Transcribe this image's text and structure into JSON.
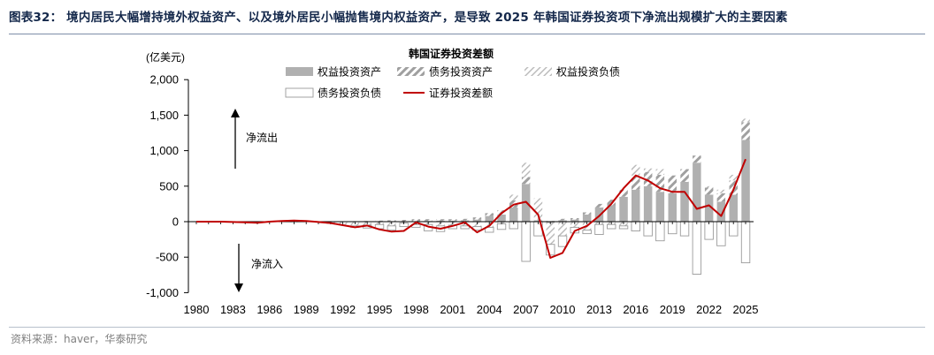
{
  "header": {
    "title": "图表32： 境内居民大幅增持境外权益资产、以及境外居民小幅抛售境内权益资产，是导致 2025 年韩国证券投资项下净流出规模扩大的主要因素"
  },
  "source": "资料来源：haver，华泰研究",
  "chart_data": {
    "type": "bar",
    "title": "韩国证券投资差额",
    "unit_label": "(亿美元)",
    "ylim": [
      -1000,
      2000
    ],
    "yticks": [
      -1000,
      -500,
      0,
      500,
      1000,
      1500,
      2000
    ],
    "ytick_labels": [
      "-1,000",
      "-500",
      "0",
      "500",
      "1,000",
      "1,500",
      "2,000"
    ],
    "xtick_labels": [
      "1980",
      "1983",
      "1986",
      "1989",
      "1992",
      "1995",
      "1998",
      "2001",
      "2004",
      "2007",
      "2010",
      "2013",
      "2016",
      "2019",
      "2022",
      "2025"
    ],
    "years": [
      1980,
      1981,
      1982,
      1983,
      1984,
      1985,
      1986,
      1987,
      1988,
      1989,
      1990,
      1991,
      1992,
      1993,
      1994,
      1995,
      1996,
      1997,
      1998,
      1999,
      2000,
      2001,
      2002,
      2003,
      2004,
      2005,
      2006,
      2007,
      2008,
      2009,
      2010,
      2011,
      2012,
      2013,
      2014,
      2015,
      2016,
      2017,
      2018,
      2019,
      2020,
      2021,
      2022,
      2023,
      2024,
      2025
    ],
    "legend_position": "top-center",
    "grid": false,
    "annotations": {
      "outflow": "净流出",
      "inflow": "净流入"
    },
    "series": [
      {
        "name": "权益投资资产",
        "type": "bar",
        "style": "solid",
        "color": "#b0b0b0",
        "values": [
          0,
          0,
          0,
          0,
          0,
          0,
          0,
          0,
          0,
          0,
          0,
          0,
          0,
          0,
          0,
          0,
          0,
          5,
          5,
          10,
          15,
          15,
          20,
          30,
          80,
          100,
          200,
          530,
          20,
          -20,
          20,
          30,
          100,
          200,
          230,
          350,
          450,
          500,
          420,
          400,
          560,
          830,
          380,
          280,
          380,
          1150
        ]
      },
      {
        "name": "债务投资资产",
        "type": "bar",
        "style": "hatch",
        "color": "#a0a0a0",
        "values": [
          0,
          0,
          0,
          0,
          0,
          0,
          0,
          0,
          0,
          0,
          0,
          0,
          0,
          5,
          10,
          15,
          20,
          20,
          30,
          25,
          20,
          20,
          20,
          30,
          40,
          60,
          100,
          100,
          10,
          10,
          20,
          20,
          30,
          50,
          80,
          100,
          200,
          200,
          240,
          250,
          180,
          100,
          100,
          120,
          200,
          250
        ]
      },
      {
        "name": "权益投资负债",
        "type": "bar",
        "style": "light-hatch",
        "color": "#c0c0c0",
        "values": [
          0,
          0,
          0,
          0,
          0,
          0,
          0,
          0,
          -5,
          -5,
          -10,
          -30,
          -40,
          -60,
          -50,
          -40,
          -60,
          -20,
          -40,
          -40,
          -60,
          -50,
          -60,
          -70,
          -80,
          -30,
          80,
          200,
          300,
          -300,
          -200,
          -80,
          -120,
          -40,
          -40,
          -60,
          150,
          50,
          80,
          0,
          0,
          0,
          20,
          50,
          80,
          50
        ]
      },
      {
        "name": "债务投资负债",
        "type": "bar",
        "style": "outline",
        "color": "#9a9a9a",
        "values": [
          0,
          0,
          0,
          0,
          0,
          0,
          0,
          0,
          0,
          0,
          0,
          0,
          0,
          -20,
          -40,
          -60,
          -60,
          -50,
          -40,
          -90,
          -80,
          -50,
          -40,
          -50,
          -70,
          -80,
          -100,
          -560,
          -200,
          -150,
          -150,
          -80,
          -50,
          -140,
          -60,
          -40,
          -130,
          -200,
          -270,
          -170,
          -200,
          -740,
          -250,
          -340,
          -200,
          -580
        ]
      },
      {
        "name": "证券投资差额",
        "type": "line",
        "color": "#c00000",
        "values": [
          0,
          0,
          0,
          -5,
          -10,
          -15,
          0,
          10,
          15,
          10,
          -5,
          -20,
          -50,
          -80,
          -55,
          -110,
          -140,
          -130,
          -10,
          -70,
          -100,
          -60,
          -10,
          -150,
          -60,
          120,
          240,
          280,
          100,
          -510,
          -440,
          -130,
          -60,
          80,
          250,
          470,
          650,
          580,
          470,
          420,
          420,
          180,
          230,
          80,
          450,
          880
        ]
      }
    ]
  }
}
